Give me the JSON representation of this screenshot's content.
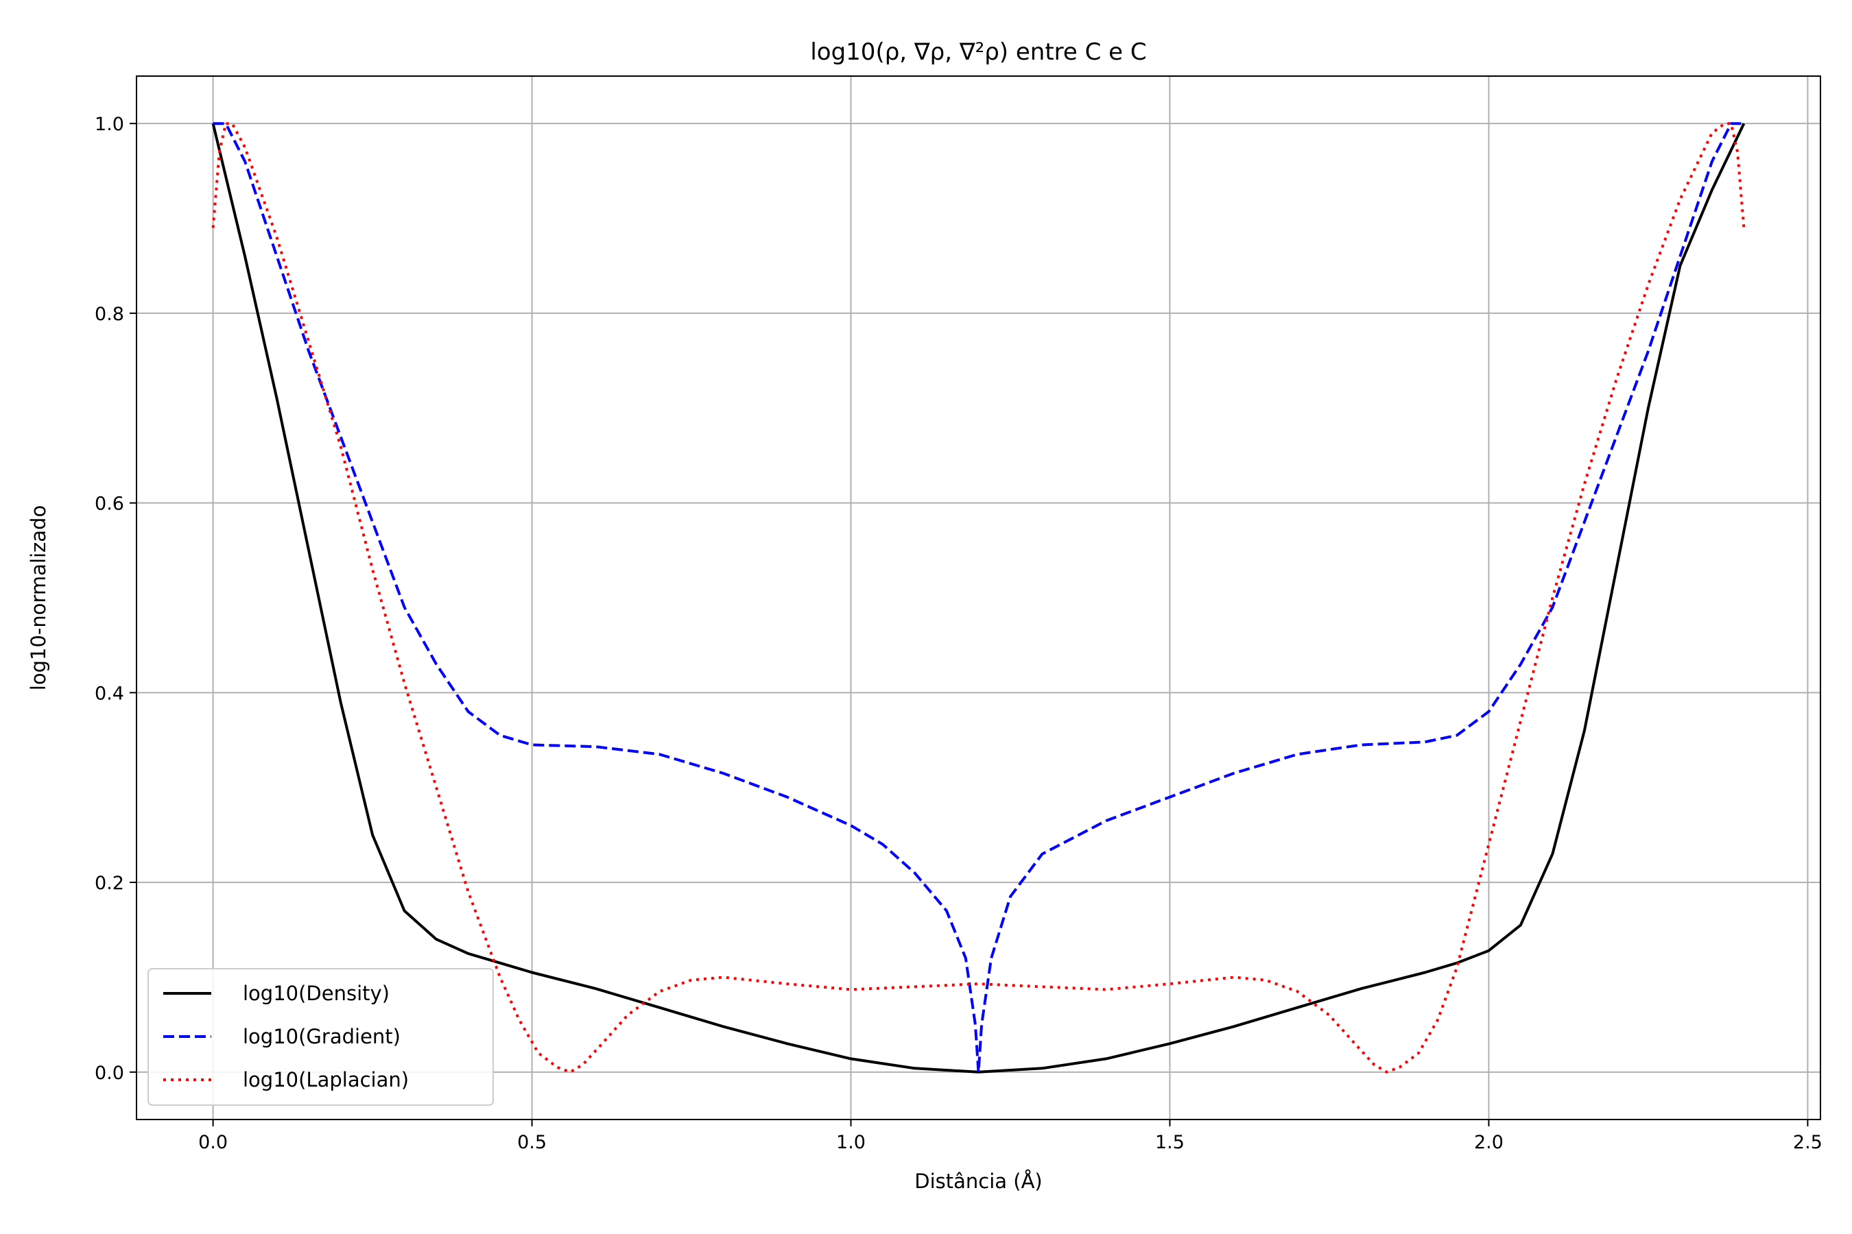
{
  "chart_data": {
    "type": "line",
    "title": "log10(ρ, ∇ρ, ∇²ρ) entre C e C",
    "xlabel": "Distância (Å)",
    "ylabel": "log10-normalizado",
    "xlim": [
      -0.12,
      2.52
    ],
    "ylim": [
      -0.05,
      1.05
    ],
    "xticks": [
      0.0,
      0.5,
      1.0,
      1.5,
      2.0,
      2.5
    ],
    "yticks": [
      0.0,
      0.2,
      0.4,
      0.6,
      0.8,
      1.0
    ],
    "xtick_labels": [
      "0.0",
      "0.5",
      "1.0",
      "1.5",
      "2.0",
      "2.5"
    ],
    "ytick_labels": [
      "0.0",
      "0.2",
      "0.4",
      "0.6",
      "0.8",
      "1.0"
    ],
    "grid": true,
    "legend_position": "lower-left",
    "series": [
      {
        "name": "log10(Density)",
        "color": "#000000",
        "style": "solid",
        "x": [
          0.0,
          0.05,
          0.1,
          0.15,
          0.2,
          0.25,
          0.3,
          0.35,
          0.4,
          0.45,
          0.5,
          0.6,
          0.7,
          0.8,
          0.9,
          1.0,
          1.1,
          1.2,
          1.3,
          1.4,
          1.5,
          1.6,
          1.7,
          1.8,
          1.9,
          1.95,
          2.0,
          2.05,
          2.1,
          2.15,
          2.2,
          2.25,
          2.3,
          2.35,
          2.4
        ],
        "y": [
          1.0,
          0.86,
          0.71,
          0.55,
          0.39,
          0.25,
          0.17,
          0.14,
          0.125,
          0.115,
          0.105,
          0.088,
          0.068,
          0.048,
          0.03,
          0.014,
          0.004,
          0.0,
          0.004,
          0.014,
          0.03,
          0.048,
          0.068,
          0.088,
          0.105,
          0.115,
          0.128,
          0.155,
          0.23,
          0.36,
          0.53,
          0.7,
          0.85,
          0.93,
          1.0
        ]
      },
      {
        "name": "log10(Gradient)",
        "color": "#0000ff",
        "style": "dashed",
        "x": [
          0.0,
          0.02,
          0.05,
          0.1,
          0.15,
          0.2,
          0.25,
          0.3,
          0.35,
          0.4,
          0.45,
          0.5,
          0.6,
          0.7,
          0.8,
          0.9,
          1.0,
          1.05,
          1.1,
          1.15,
          1.18,
          1.195,
          1.2,
          1.205,
          1.22,
          1.25,
          1.3,
          1.4,
          1.5,
          1.6,
          1.7,
          1.8,
          1.9,
          1.95,
          2.0,
          2.05,
          2.1,
          2.15,
          2.2,
          2.25,
          2.3,
          2.35,
          2.38,
          2.4
        ],
        "y": [
          1.0,
          1.0,
          0.96,
          0.86,
          0.76,
          0.67,
          0.58,
          0.49,
          0.43,
          0.38,
          0.355,
          0.345,
          0.343,
          0.335,
          0.315,
          0.29,
          0.26,
          0.24,
          0.21,
          0.17,
          0.12,
          0.05,
          0.0,
          0.05,
          0.12,
          0.185,
          0.23,
          0.265,
          0.29,
          0.315,
          0.335,
          0.345,
          0.348,
          0.355,
          0.38,
          0.43,
          0.49,
          0.58,
          0.67,
          0.76,
          0.86,
          0.96,
          1.0,
          1.0
        ]
      },
      {
        "name": "log10(Laplacian)",
        "color": "#ff0000",
        "style": "dotted",
        "x": [
          0.0,
          0.01,
          0.02,
          0.03,
          0.05,
          0.1,
          0.15,
          0.2,
          0.25,
          0.3,
          0.35,
          0.4,
          0.45,
          0.48,
          0.51,
          0.54,
          0.56,
          0.58,
          0.61,
          0.65,
          0.7,
          0.75,
          0.8,
          0.9,
          1.0,
          1.1,
          1.2,
          1.3,
          1.4,
          1.5,
          1.6,
          1.65,
          1.7,
          1.75,
          1.79,
          1.82,
          1.84,
          1.86,
          1.89,
          1.92,
          1.95,
          2.0,
          2.05,
          2.1,
          2.15,
          2.2,
          2.25,
          2.3,
          2.35,
          2.37,
          2.38,
          2.39,
          2.4
        ],
        "y": [
          0.89,
          0.97,
          1.0,
          1.0,
          0.975,
          0.88,
          0.77,
          0.66,
          0.53,
          0.41,
          0.3,
          0.19,
          0.1,
          0.055,
          0.02,
          0.005,
          0.0,
          0.008,
          0.03,
          0.06,
          0.085,
          0.097,
          0.1,
          0.093,
          0.087,
          0.09,
          0.093,
          0.09,
          0.087,
          0.093,
          0.1,
          0.097,
          0.085,
          0.06,
          0.03,
          0.008,
          0.0,
          0.005,
          0.02,
          0.055,
          0.11,
          0.24,
          0.37,
          0.5,
          0.62,
          0.73,
          0.83,
          0.92,
          0.99,
          1.0,
          1.0,
          0.97,
          0.89
        ]
      }
    ]
  }
}
